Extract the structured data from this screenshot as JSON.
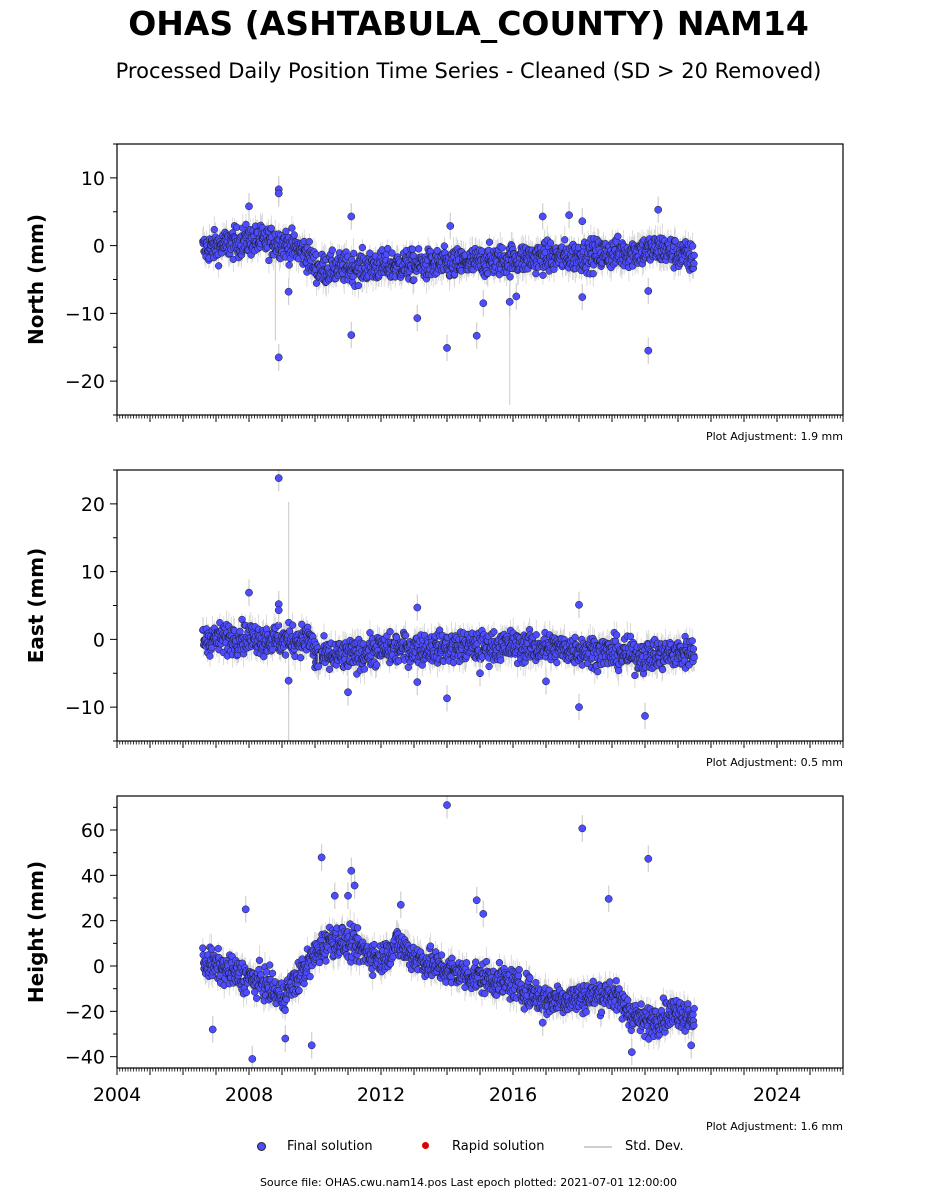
{
  "title": "OHAS (ASHTABULA_COUNTY) NAM14",
  "subtitle": "Processed Daily Position Time Series - Cleaned (SD > 20 Removed)",
  "legend": {
    "final": "Final solution",
    "rapid": "Rapid solution",
    "std": "Std. Dev.",
    "final_color": "#4d4dff",
    "rapid_color": "#e00000",
    "std_color": "#cfcfcf"
  },
  "footer": "Source file: OHAS.cwu.nam14.pos  Last epoch plotted: 2021-07-01 12:00:00",
  "chart_data": [
    {
      "type": "scatter",
      "ylabel": "North (mm)",
      "adjustment": "Plot Adjustment: 1.9 mm",
      "xlim": [
        2004,
        2026
      ],
      "ylim": [
        -25,
        15
      ],
      "yticks": [
        -20,
        -10,
        0,
        10
      ],
      "yticklabels": [
        "−20",
        "−10",
        "0",
        "10"
      ],
      "data_start": 2006.6,
      "data_end": 2021.5,
      "trend": [
        [
          2006.6,
          -0.5
        ],
        [
          2008.0,
          0.8
        ],
        [
          2009.0,
          0.5
        ],
        [
          2009.7,
          -1.0
        ],
        [
          2010.1,
          -3.5
        ],
        [
          2012.0,
          -3.0
        ],
        [
          2014.0,
          -2.8
        ],
        [
          2016.0,
          -2.0
        ],
        [
          2018.0,
          -1.5
        ],
        [
          2019.5,
          -1.0
        ],
        [
          2020.5,
          -0.5
        ],
        [
          2021.5,
          -2.0
        ]
      ],
      "outliers": [
        [
          2008.9,
          8.3
        ],
        [
          2008.9,
          7.7
        ],
        [
          2008.0,
          5.8
        ],
        [
          2008.9,
          -16.5
        ],
        [
          2009.2,
          -6.8
        ],
        [
          2011.1,
          -13.2
        ],
        [
          2011.1,
          4.3
        ],
        [
          2013.1,
          -10.7
        ],
        [
          2014.0,
          -15.1
        ],
        [
          2014.1,
          2.9
        ],
        [
          2014.9,
          -13.3
        ],
        [
          2015.1,
          -8.5
        ],
        [
          2015.9,
          -8.3
        ],
        [
          2016.1,
          -7.5
        ],
        [
          2016.9,
          4.3
        ],
        [
          2017.7,
          4.5
        ],
        [
          2018.1,
          -7.6
        ],
        [
          2018.1,
          3.6
        ],
        [
          2020.1,
          -15.5
        ],
        [
          2020.1,
          -6.7
        ],
        [
          2020.4,
          5.3
        ]
      ],
      "std_spikes": [
        [
          2008.8,
          -14,
          3
        ],
        [
          2015.9,
          -23.5,
          0
        ]
      ]
    },
    {
      "type": "scatter",
      "ylabel": "East (mm)",
      "adjustment": "Plot Adjustment: 0.5 mm",
      "xlim": [
        2004,
        2026
      ],
      "ylim": [
        -15,
        25
      ],
      "yticks": [
        -10,
        0,
        10,
        20
      ],
      "yticklabels": [
        "−10",
        "0",
        "10",
        "20"
      ],
      "data_start": 2006.6,
      "data_end": 2021.5,
      "trend": [
        [
          2006.6,
          0.0
        ],
        [
          2008.0,
          0.3
        ],
        [
          2009.0,
          -0.2
        ],
        [
          2009.9,
          0.0
        ],
        [
          2010.0,
          -2.5
        ],
        [
          2011.0,
          -2.5
        ],
        [
          2012.0,
          -1.5
        ],
        [
          2014.0,
          -1.2
        ],
        [
          2016.0,
          -1.0
        ],
        [
          2018.0,
          -1.5
        ],
        [
          2020.0,
          -2.5
        ],
        [
          2021.5,
          -1.8
        ]
      ],
      "outliers": [
        [
          2008.9,
          23.8
        ],
        [
          2008.9,
          5.2
        ],
        [
          2008.9,
          4.3
        ],
        [
          2008.0,
          6.9
        ],
        [
          2009.2,
          -6.1
        ],
        [
          2010.1,
          -4.0
        ],
        [
          2011.0,
          -7.8
        ],
        [
          2013.1,
          4.7
        ],
        [
          2013.1,
          -6.3
        ],
        [
          2014.0,
          -8.7
        ],
        [
          2015.0,
          -5.0
        ],
        [
          2017.0,
          -6.2
        ],
        [
          2018.0,
          5.1
        ],
        [
          2018.0,
          -10.0
        ],
        [
          2020.0,
          -11.3
        ]
      ],
      "std_spikes": [
        [
          2009.2,
          -14.9,
          20.3
        ]
      ]
    },
    {
      "type": "scatter",
      "ylabel": "Height (mm)",
      "adjustment": "Plot Adjustment: 1.6 mm",
      "xlim": [
        2004,
        2026
      ],
      "ylim": [
        -45,
        75
      ],
      "yticks": [
        -40,
        -20,
        0,
        20,
        40,
        60
      ],
      "yticklabels": [
        "−40",
        "−20",
        "0",
        "20",
        "40",
        "60"
      ],
      "xticks": [
        2004,
        2008,
        2012,
        2016,
        2020,
        2024
      ],
      "xticklabels": [
        "2004",
        "2008",
        "2012",
        "2016",
        "2020",
        "2024"
      ],
      "data_start": 2006.6,
      "data_end": 2021.5,
      "trend": [
        [
          2006.6,
          2.0
        ],
        [
          2007.5,
          -3.0
        ],
        [
          2008.5,
          -8.0
        ],
        [
          2009.0,
          -14.0
        ],
        [
          2009.5,
          -5.0
        ],
        [
          2010.0,
          5.0
        ],
        [
          2010.5,
          12.0
        ],
        [
          2011.0,
          10.0
        ],
        [
          2012.0,
          3.0
        ],
        [
          2012.5,
          10.0
        ],
        [
          2013.0,
          4.0
        ],
        [
          2014.0,
          -2.0
        ],
        [
          2015.0,
          -5.0
        ],
        [
          2016.0,
          -8.0
        ],
        [
          2017.0,
          -15.0
        ],
        [
          2018.0,
          -14.0
        ],
        [
          2019.0,
          -12.0
        ],
        [
          2019.5,
          -20.0
        ],
        [
          2020.0,
          -25.0
        ],
        [
          2021.0,
          -20.0
        ],
        [
          2021.5,
          -22.0
        ]
      ],
      "outliers": [
        [
          2014.0,
          71.0
        ],
        [
          2018.1,
          60.7
        ],
        [
          2020.1,
          47.3
        ],
        [
          2010.2,
          47.9
        ],
        [
          2011.1,
          42.0
        ],
        [
          2011.2,
          35.5
        ],
        [
          2010.6,
          31.0
        ],
        [
          2011.0,
          31.0
        ],
        [
          2018.9,
          29.6
        ],
        [
          2012.6,
          27.0
        ],
        [
          2007.9,
          25.0
        ],
        [
          2014.9,
          29.0
        ],
        [
          2015.1,
          23.0
        ],
        [
          2009.1,
          -32.0
        ],
        [
          2009.9,
          -35.0
        ],
        [
          2008.1,
          -41.0
        ],
        [
          2006.9,
          -28.0
        ],
        [
          2016.9,
          -25.0
        ],
        [
          2019.6,
          -38.0
        ],
        [
          2021.4,
          -35.0
        ]
      ]
    }
  ]
}
